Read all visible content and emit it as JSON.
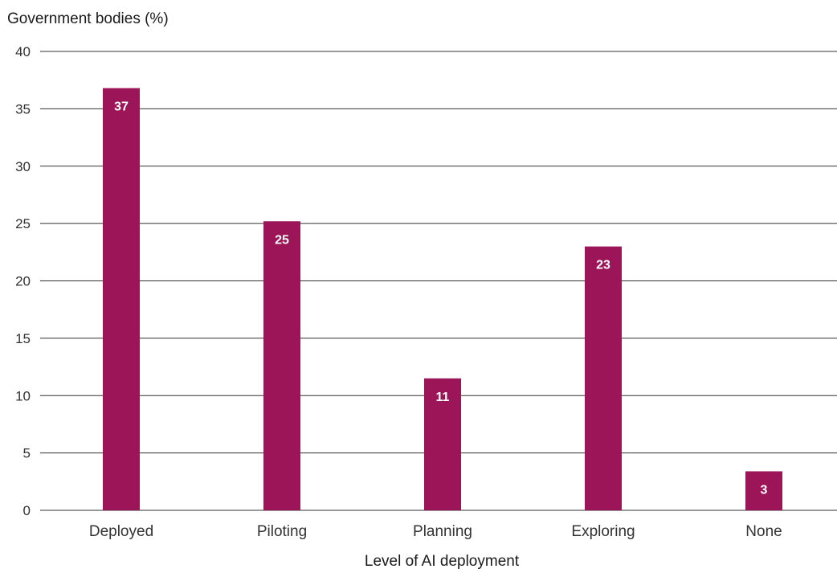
{
  "chart_data": {
    "type": "bar",
    "categories": [
      "Deployed",
      "Piloting",
      "Planning",
      "Exploring",
      "None"
    ],
    "values": [
      37,
      25,
      11,
      23,
      3
    ],
    "data_labels": [
      "37",
      "25",
      "11",
      "23",
      "3"
    ],
    "bar_heights": [
      36.8,
      25.2,
      11.5,
      23.0,
      3.4
    ],
    "title": "",
    "ylabel": "Government bodies (%)",
    "xlabel": "Level of AI deployment",
    "ylim": [
      0,
      40
    ],
    "yticks": [
      0,
      5,
      10,
      15,
      20,
      25,
      30,
      35,
      40
    ],
    "grid": true,
    "legend": "none",
    "bar_color": "#9b1558",
    "grid_color": "#333333"
  }
}
